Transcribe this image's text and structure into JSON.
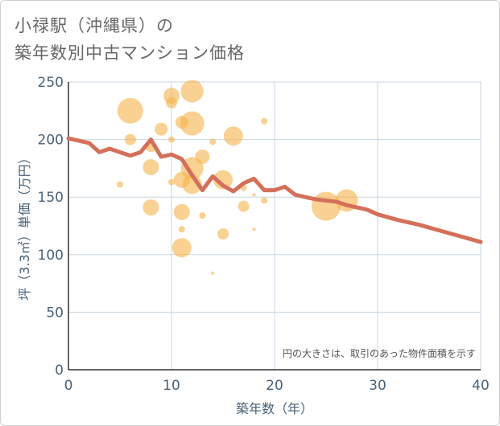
{
  "title_line1": "小禄駅（沖縄県）の",
  "title_line2": "築年数別中古マンション価格",
  "chart_data": {
    "type": "scatter",
    "title": "小禄駅（沖縄県）の築年数別中古マンション価格",
    "xlabel": "築年数（年）",
    "ylabel": "坪（3.3㎡）単価（万円）",
    "xlim": [
      0,
      40
    ],
    "ylim": [
      0,
      250
    ],
    "xticks": [
      0,
      10,
      20,
      30,
      40
    ],
    "yticks": [
      0,
      50,
      100,
      150,
      200,
      250
    ],
    "note": "円の大きさは、取引のあった物件面積を示す",
    "colors": {
      "bubble": "#f5b44f",
      "line": "#d4705a",
      "grid": "#c9d6e0",
      "axis_text": "#4a6277"
    },
    "bubbles": [
      {
        "x": 6,
        "y": 225,
        "r": 16
      },
      {
        "x": 12,
        "y": 242,
        "r": 14
      },
      {
        "x": 10,
        "y": 238,
        "r": 10
      },
      {
        "x": 10,
        "y": 232,
        "r": 7
      },
      {
        "x": 12,
        "y": 214,
        "r": 15
      },
      {
        "x": 11,
        "y": 215,
        "r": 8
      },
      {
        "x": 9,
        "y": 209,
        "r": 8
      },
      {
        "x": 19,
        "y": 216,
        "r": 4
      },
      {
        "x": 6,
        "y": 200,
        "r": 7
      },
      {
        "x": 10,
        "y": 200,
        "r": 4
      },
      {
        "x": 14,
        "y": 198,
        "r": 4
      },
      {
        "x": 16,
        "y": 203,
        "r": 12
      },
      {
        "x": 8,
        "y": 194,
        "r": 7
      },
      {
        "x": 13,
        "y": 185,
        "r": 9
      },
      {
        "x": 8,
        "y": 176,
        "r": 10
      },
      {
        "x": 12,
        "y": 175,
        "r": 14
      },
      {
        "x": 11,
        "y": 165,
        "r": 10
      },
      {
        "x": 12,
        "y": 161,
        "r": 12
      },
      {
        "x": 15,
        "y": 165,
        "r": 12
      },
      {
        "x": 10,
        "y": 163,
        "r": 4
      },
      {
        "x": 5,
        "y": 161,
        "r": 4
      },
      {
        "x": 17,
        "y": 158,
        "r": 4
      },
      {
        "x": 18,
        "y": 152,
        "r": 2
      },
      {
        "x": 19,
        "y": 147,
        "r": 4
      },
      {
        "x": 8,
        "y": 141,
        "r": 10
      },
      {
        "x": 17,
        "y": 142,
        "r": 7
      },
      {
        "x": 11,
        "y": 137,
        "r": 10
      },
      {
        "x": 13,
        "y": 134,
        "r": 4
      },
      {
        "x": 11,
        "y": 122,
        "r": 4
      },
      {
        "x": 15,
        "y": 118,
        "r": 7
      },
      {
        "x": 18,
        "y": 122,
        "r": 2
      },
      {
        "x": 11,
        "y": 106,
        "r": 12
      },
      {
        "x": 14,
        "y": 84,
        "r": 2
      },
      {
        "x": 25,
        "y": 142,
        "r": 18
      },
      {
        "x": 27,
        "y": 147,
        "r": 14
      }
    ],
    "trend_line": {
      "x": [
        0,
        1,
        2,
        3,
        4,
        5,
        6,
        7,
        8,
        9,
        10,
        11,
        12,
        13,
        14,
        15,
        16,
        17,
        18,
        19,
        20,
        21,
        22,
        23,
        24,
        25,
        26,
        27,
        28,
        29,
        30,
        32,
        34,
        36,
        38,
        40
      ],
      "y": [
        201,
        199,
        197,
        189,
        192,
        189,
        186,
        189,
        200,
        185,
        187,
        183,
        169,
        156,
        168,
        160,
        155,
        162,
        166,
        156,
        156,
        159,
        152,
        150,
        148,
        147,
        146,
        143,
        141,
        139,
        135,
        130,
        126,
        121,
        116,
        111
      ]
    }
  }
}
